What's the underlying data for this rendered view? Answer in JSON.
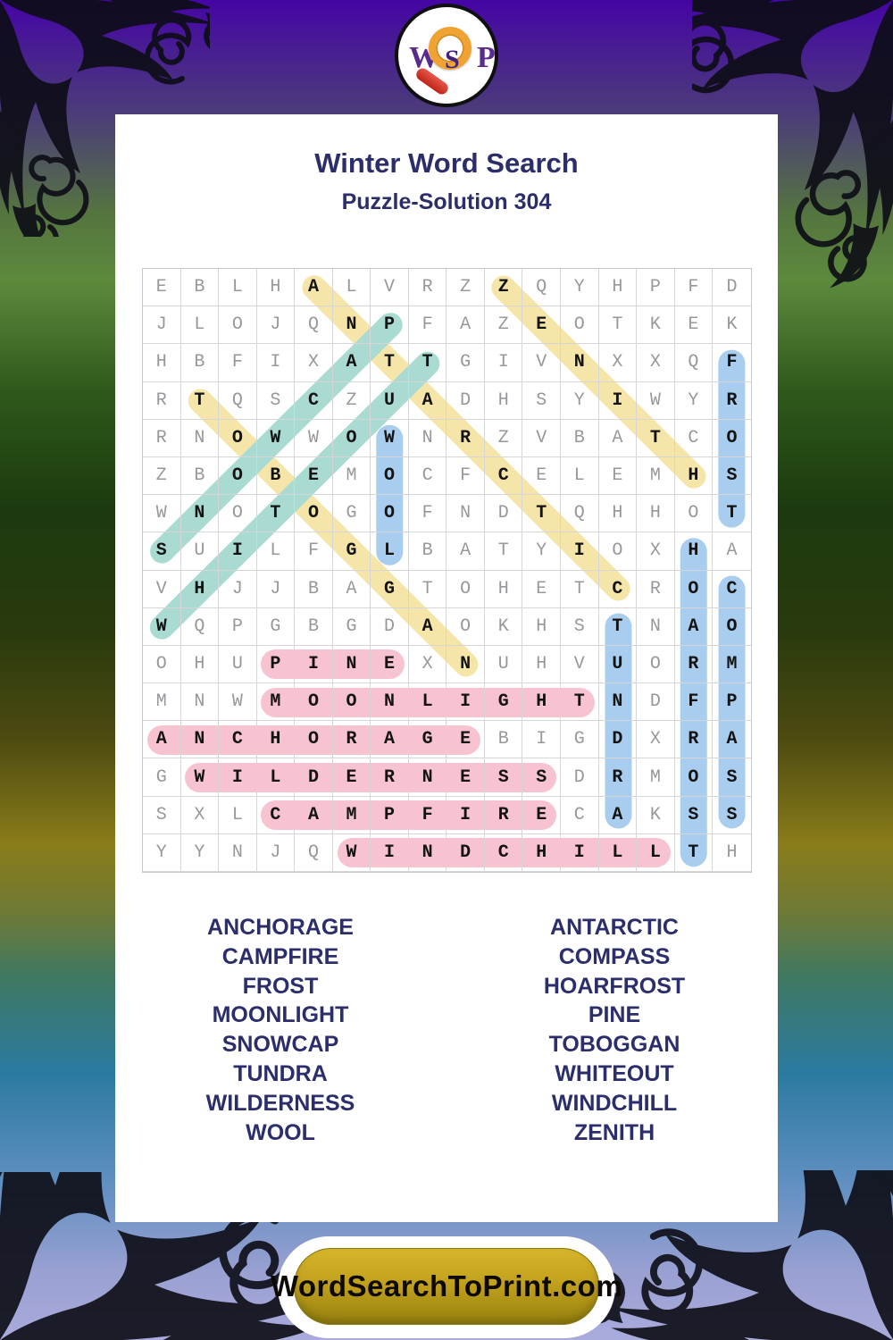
{
  "header": {
    "title": "Winter Word Search",
    "subtitle": "Puzzle-Solution 304"
  },
  "logo": {
    "w": "W",
    "s": "S",
    "p": "P"
  },
  "grid": {
    "rows": [
      "EBLHALVRZZQYHPFD",
      "JLOJQNPFAZEOTKEK",
      "HBFIXATTGIVNXXQF",
      "RTQSCZUADHSYIWYR",
      "RNOWWOWNRZVBATCO",
      "ZBOBEMOCFCELEMHS",
      "WNOTOGOFNDTQHHOT",
      "SUILFGLBATYIOXHA",
      "VHJJBAGTOHETCROC",
      "WQPGBGDAOKHSTNAO",
      "OHUPINEXNUHVUORM",
      "MNWMOONLIGHTNDFP",
      "ANCHORAGEBIGDXRA",
      "GWILDERNESSDRMOS",
      "SXLCAMPFIRECAKSS",
      "YYNJQWINDCHILLTH"
    ],
    "words": [
      {
        "word": "ANTARCTIC",
        "row": 1,
        "col": 5,
        "dir": "DR",
        "color": "yellow"
      },
      {
        "word": "ZENITH",
        "row": 1,
        "col": 10,
        "dir": "DR",
        "color": "yellow"
      },
      {
        "word": "TOBOGGAN",
        "row": 4,
        "col": 2,
        "dir": "DR",
        "color": "yellow"
      },
      {
        "word": "SNOWCAP",
        "row": 8,
        "col": 1,
        "dir": "UR",
        "color": "teal"
      },
      {
        "word": "WHITEOUT",
        "row": 10,
        "col": 1,
        "dir": "UR",
        "color": "teal"
      },
      {
        "word": "FROST",
        "row": 3,
        "col": 16,
        "dir": "D",
        "color": "blue"
      },
      {
        "word": "WOOL",
        "row": 5,
        "col": 7,
        "dir": "D",
        "color": "blue"
      },
      {
        "word": "HOARFROST",
        "row": 8,
        "col": 15,
        "dir": "D",
        "color": "blue"
      },
      {
        "word": "COMPASS",
        "row": 9,
        "col": 16,
        "dir": "D",
        "color": "blue"
      },
      {
        "word": "TUNDRA",
        "row": 10,
        "col": 13,
        "dir": "D",
        "color": "blue"
      },
      {
        "word": "PINE",
        "row": 11,
        "col": 4,
        "dir": "R",
        "color": "pink"
      },
      {
        "word": "MOONLIGHT",
        "row": 12,
        "col": 4,
        "dir": "R",
        "color": "pink"
      },
      {
        "word": "ANCHORAGE",
        "row": 13,
        "col": 1,
        "dir": "R",
        "color": "pink"
      },
      {
        "word": "WILDERNESS",
        "row": 14,
        "col": 2,
        "dir": "R",
        "color": "pink"
      },
      {
        "word": "CAMPFIRE",
        "row": 15,
        "col": 4,
        "dir": "R",
        "color": "pink"
      },
      {
        "word": "WINDCHILL",
        "row": 16,
        "col": 6,
        "dir": "R",
        "color": "pink"
      }
    ]
  },
  "word_list": {
    "left": [
      "ANCHORAGE",
      "CAMPFIRE",
      "FROST",
      "MOONLIGHT",
      "SNOWCAP",
      "TUNDRA",
      "WILDERNESS",
      "WOOL"
    ],
    "right": [
      "ANTARCTIC",
      "COMPASS",
      "HOARFROST",
      "PINE",
      "TOBOGGAN",
      "WHITEOUT",
      "WINDCHILL",
      "ZENITH"
    ]
  },
  "footer": {
    "site_button_label": "WordSearchToPrint.com"
  },
  "colors": {
    "navy": "#2b2e6b",
    "yellow": "#f5e5a9",
    "teal": "#a9dbd2",
    "blue": "#a8cdee",
    "pink": "#f8c3d0",
    "gold": "#c2a11d"
  }
}
